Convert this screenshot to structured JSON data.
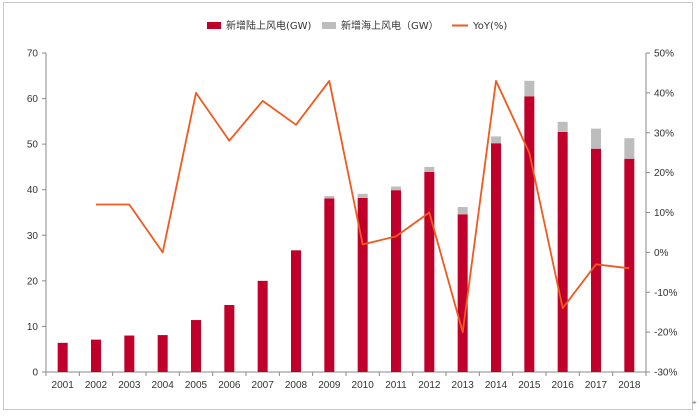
{
  "chart_data": {
    "type": "bar",
    "title": "",
    "xlabel": "",
    "ylabel": "",
    "categories": [
      "2001",
      "2002",
      "2003",
      "2004",
      "2005",
      "2006",
      "2007",
      "2008",
      "2009",
      "2010",
      "2011",
      "2012",
      "2013",
      "2014",
      "2015",
      "2016",
      "2017",
      "2018"
    ],
    "series": [
      {
        "name": "新增陆上风电(GW)",
        "kind": "bar",
        "axis": "left",
        "color": "#c0002a",
        "values": [
          6.4,
          7.1,
          8.0,
          8.1,
          11.4,
          14.7,
          20.0,
          26.7,
          38.1,
          38.2,
          39.9,
          43.9,
          34.6,
          50.2,
          60.5,
          52.7,
          49.0,
          46.8
        ]
      },
      {
        "name": "新增海上风电（GW）",
        "kind": "stacked-bar",
        "axis": "left",
        "color": "#bdbdbd",
        "values": [
          0,
          0,
          0,
          0,
          0,
          0,
          0,
          0,
          0.5,
          0.9,
          0.8,
          1.1,
          1.6,
          1.5,
          3.4,
          2.2,
          4.4,
          4.5
        ]
      },
      {
        "name": "YoY(%)",
        "kind": "line",
        "axis": "right",
        "color": "#f05a1e",
        "values": [
          null,
          12,
          12,
          0,
          40,
          28,
          38,
          32,
          43,
          2,
          4,
          10,
          -20,
          43,
          25,
          -14,
          -3,
          -4
        ]
      }
    ],
    "left_axis": {
      "min": 0,
      "max": 70,
      "step": 10,
      "ticks": [
        "0",
        "10",
        "20",
        "30",
        "40",
        "50",
        "60",
        "70"
      ]
    },
    "right_axis": {
      "min": -30,
      "max": 50,
      "step": 10,
      "ticks": [
        "-30%",
        "-20%",
        "-10%",
        "0%",
        "10%",
        "20%",
        "30%",
        "40%",
        "50%"
      ]
    },
    "grid": false,
    "legend_position": "top-center"
  },
  "corner_mark": "⌖"
}
